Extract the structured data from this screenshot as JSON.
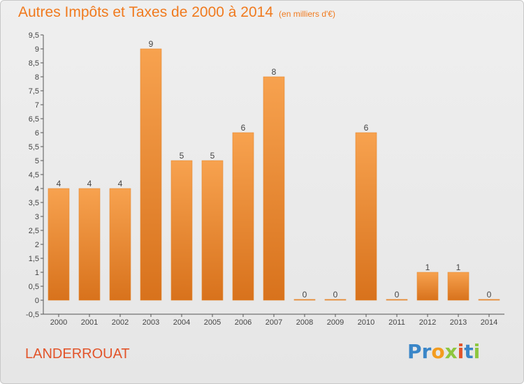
{
  "chart_data": {
    "type": "bar",
    "title": "Autres Impôts et Taxes de 2000 à 2014",
    "subtitle": "(en milliers d'€)",
    "categories": [
      "2000",
      "2001",
      "2002",
      "2003",
      "2004",
      "2005",
      "2006",
      "2007",
      "2008",
      "2009",
      "2010",
      "2011",
      "2012",
      "2013",
      "2014"
    ],
    "values": [
      4,
      4,
      4,
      9,
      5,
      5,
      6,
      8,
      0,
      0,
      6,
      0,
      1,
      1,
      0
    ],
    "y_ticks": [
      "-0,5",
      "0",
      "0,5",
      "1",
      "1,5",
      "2",
      "2,5",
      "3",
      "3,5",
      "4",
      "4,5",
      "5",
      "5,5",
      "6",
      "6,5",
      "7",
      "7,5",
      "8",
      "8,5",
      "9",
      "9,5"
    ],
    "ylim": [
      -0.5,
      9.5
    ],
    "grid": false,
    "colors": {
      "bar_light": "#f7a24f",
      "bar_dark": "#d8721c",
      "title": "#f07a1e",
      "commune": "#e2542a"
    }
  },
  "commune": "LANDERROUAT",
  "brand": {
    "name": "Proxiti",
    "letters": [
      {
        "ch": "P",
        "color": "#3a86c8"
      },
      {
        "ch": "r",
        "color": "#3a86c8"
      },
      {
        "ch": "o",
        "color": "#f39c1f"
      },
      {
        "ch": "x",
        "color": "#8dc63f"
      },
      {
        "ch": "i",
        "color": "#e2542a"
      },
      {
        "ch": "t",
        "color": "#3a86c8"
      },
      {
        "ch": "i",
        "color": "#8dc63f"
      }
    ]
  }
}
